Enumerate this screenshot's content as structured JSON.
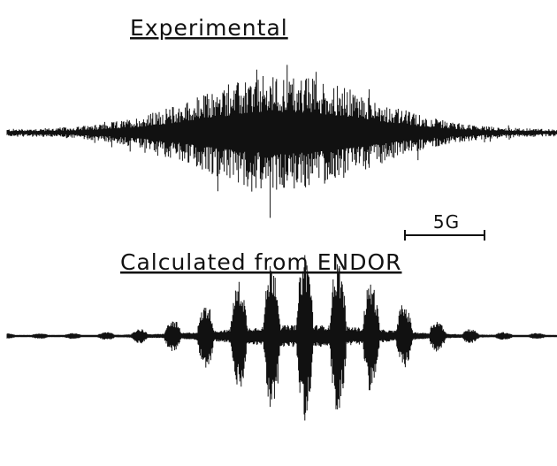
{
  "panels": [
    {
      "title": "Experimental"
    },
    {
      "title": "Calculated from ENDOR"
    }
  ],
  "scale_bar": {
    "label": "5G"
  }
}
